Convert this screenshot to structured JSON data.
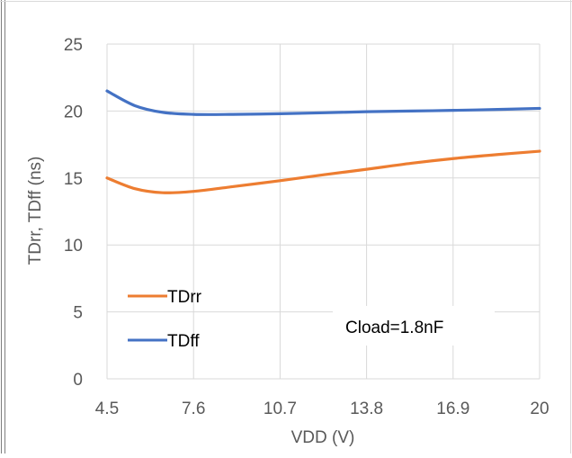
{
  "chart_data": {
    "type": "line",
    "xlabel": "VDD (V)",
    "ylabel": "TDrr, TDff (ns)",
    "xlim": [
      4.5,
      20
    ],
    "ylim": [
      0,
      25
    ],
    "x_ticks": [
      "4.5",
      "7.6",
      "10.7",
      "13.8",
      "16.9",
      "20"
    ],
    "y_ticks": [
      "0",
      "5",
      "10",
      "15",
      "20",
      "25"
    ],
    "grid": true,
    "legend_position": "bottom-left",
    "annotation": "Cload=1.8nF",
    "series": [
      {
        "name": "TDrr",
        "color": "#ED7D31",
        "x": [
          4.5,
          5.5,
          6.5,
          7.6,
          9.0,
          10.7,
          12.3,
          13.8,
          15.4,
          16.9,
          18.5,
          20
        ],
        "values": [
          15.0,
          14.2,
          13.9,
          14.0,
          14.35,
          14.8,
          15.25,
          15.65,
          16.1,
          16.45,
          16.75,
          17.0
        ]
      },
      {
        "name": "TDff",
        "color": "#4472C4",
        "x": [
          4.5,
          5.5,
          6.5,
          7.6,
          9.0,
          10.7,
          12.3,
          13.8,
          15.4,
          16.9,
          18.5,
          20
        ],
        "values": [
          21.5,
          20.4,
          19.9,
          19.75,
          19.75,
          19.8,
          19.87,
          19.95,
          20.0,
          20.05,
          20.12,
          20.2
        ]
      }
    ]
  }
}
